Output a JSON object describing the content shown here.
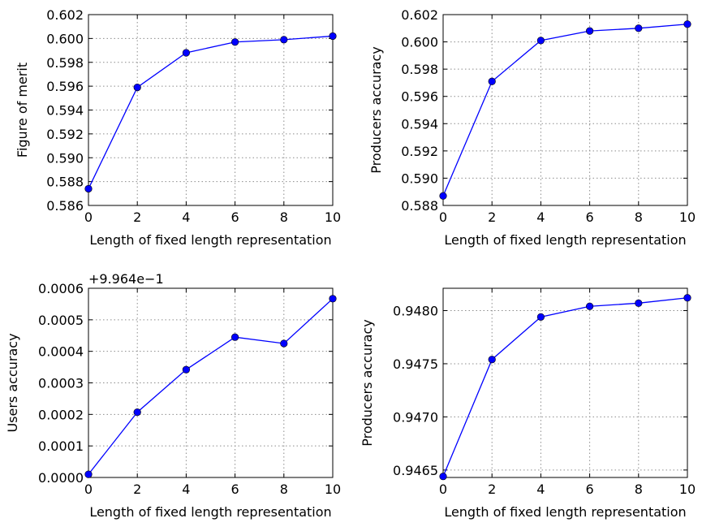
{
  "chart_data": [
    {
      "type": "line",
      "title": "",
      "xlabel": "Length of fixed length representation",
      "ylabel": "Figure of merit",
      "xlim": [
        0,
        10
      ],
      "ylim": [
        0.586,
        0.602
      ],
      "x_ticks": [
        0,
        2,
        4,
        6,
        8,
        10
      ],
      "x_tick_labels": [
        "0",
        "2",
        "4",
        "6",
        "8",
        "10"
      ],
      "y_ticks": [
        0.586,
        0.588,
        0.59,
        0.592,
        0.594,
        0.596,
        0.598,
        0.6,
        0.602
      ],
      "y_tick_labels": [
        "0.586",
        "0.588",
        "0.590",
        "0.592",
        "0.594",
        "0.596",
        "0.598",
        "0.600",
        "0.602"
      ],
      "offset_label": "",
      "grid": true,
      "series": [
        {
          "x": [
            0,
            2,
            4,
            6,
            8,
            10
          ],
          "values": [
            0.5874,
            0.5959,
            0.5988,
            0.5997,
            0.5999,
            0.6002
          ],
          "color": "#0000ff"
        }
      ]
    },
    {
      "type": "line",
      "title": "",
      "xlabel": "Length of fixed length representation",
      "ylabel": "Producers accuracy",
      "xlim": [
        0,
        10
      ],
      "ylim": [
        0.588,
        0.602
      ],
      "x_ticks": [
        0,
        2,
        4,
        6,
        8,
        10
      ],
      "x_tick_labels": [
        "0",
        "2",
        "4",
        "6",
        "8",
        "10"
      ],
      "y_ticks": [
        0.588,
        0.59,
        0.592,
        0.594,
        0.596,
        0.598,
        0.6,
        0.602
      ],
      "y_tick_labels": [
        "0.588",
        "0.590",
        "0.592",
        "0.594",
        "0.596",
        "0.598",
        "0.600",
        "0.602"
      ],
      "offset_label": "",
      "grid": true,
      "series": [
        {
          "x": [
            0,
            2,
            4,
            6,
            8,
            10
          ],
          "values": [
            0.5887,
            0.5971,
            0.6001,
            0.6008,
            0.601,
            0.6013
          ],
          "color": "#0000ff"
        }
      ]
    },
    {
      "type": "line",
      "title": "",
      "xlabel": "Length of fixed length representation",
      "ylabel": "Users accuracy",
      "xlim": [
        0,
        10
      ],
      "ylim": [
        0.0,
        0.0006
      ],
      "x_ticks": [
        0,
        2,
        4,
        6,
        8,
        10
      ],
      "x_tick_labels": [
        "0",
        "2",
        "4",
        "6",
        "8",
        "10"
      ],
      "y_ticks": [
        0.0,
        0.0001,
        0.0002,
        0.0003,
        0.0004,
        0.0005,
        0.0006
      ],
      "y_tick_labels": [
        "0.0000",
        "0.0001",
        "0.0002",
        "0.0003",
        "0.0004",
        "0.0005",
        "0.0006"
      ],
      "offset_label": "+9.964e−1",
      "grid": true,
      "series": [
        {
          "x": [
            0,
            2,
            4,
            6,
            8,
            10
          ],
          "values": [
            1e-05,
            0.000207,
            0.000342,
            0.000445,
            0.000425,
            0.000567
          ],
          "color": "#0000ff"
        }
      ]
    },
    {
      "type": "line",
      "title": "",
      "xlabel": "Length of fixed length representation",
      "ylabel": "Producers accuracy",
      "xlim": [
        0,
        10
      ],
      "ylim": [
        0.94643,
        0.94821
      ],
      "x_ticks": [
        0,
        2,
        4,
        6,
        8,
        10
      ],
      "x_tick_labels": [
        "0",
        "2",
        "4",
        "6",
        "8",
        "10"
      ],
      "y_ticks": [
        0.9465,
        0.947,
        0.9475,
        0.948
      ],
      "y_tick_labels": [
        "0.9465",
        "0.9470",
        "0.9475",
        "0.9480"
      ],
      "offset_label": "",
      "grid": true,
      "series": [
        {
          "x": [
            0,
            2,
            4,
            6,
            8,
            10
          ],
          "values": [
            0.94644,
            0.94754,
            0.94794,
            0.94804,
            0.94807,
            0.94812
          ],
          "color": "#0000ff"
        }
      ]
    }
  ]
}
